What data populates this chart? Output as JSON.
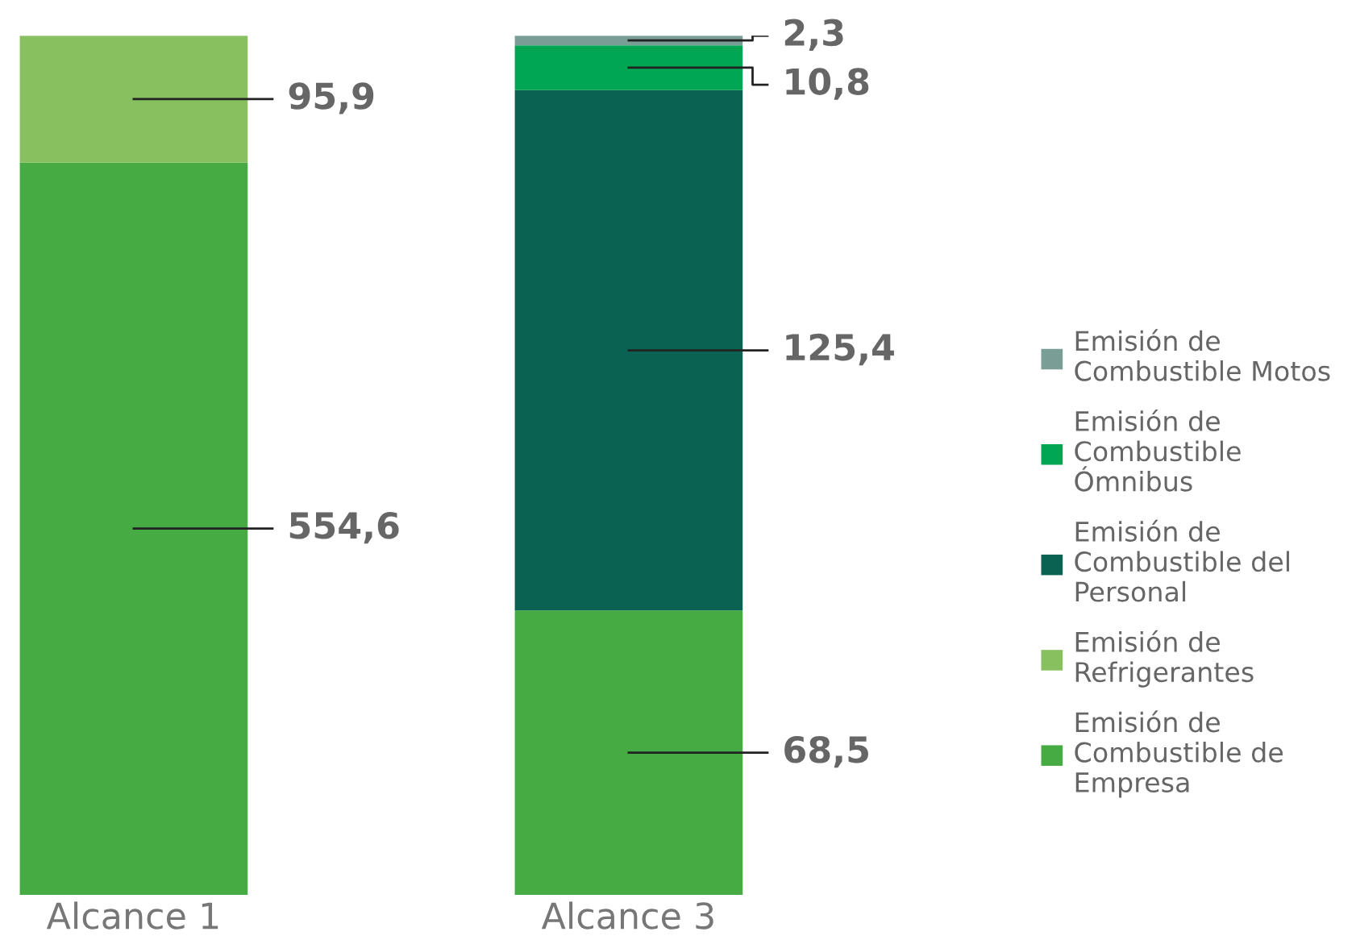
{
  "chart_data": [
    {
      "type": "bar",
      "stacked": true,
      "categories": [
        "Alcance 1"
      ],
      "ylim": [
        0,
        650.5
      ],
      "tick_labels": "x",
      "series": [
        {
          "name": "Emisión de\nCombustible de\nEmpresa",
          "color": "#46ab42",
          "values": [
            554.6
          ],
          "value_labels": [
            "554,6"
          ]
        },
        {
          "name": "Emisión de\nRefrigerantes",
          "color": "#88bf5f",
          "values": [
            95.9
          ],
          "value_labels": [
            "95,9"
          ]
        }
      ],
      "legend": "right",
      "grid": false
    },
    {
      "type": "bar",
      "stacked": true,
      "categories": [
        "Alcance 3"
      ],
      "ylim": [
        0,
        207
      ],
      "tick_labels": "x",
      "series": [
        {
          "color": "#46ab42",
          "values": [
            68.5
          ],
          "value_labels": [
            "68,5"
          ]
        },
        {
          "name": "Emisión de\nCombustible del\nPersonal",
          "color": "#0a6352",
          "values": [
            125.4
          ],
          "value_labels": [
            "125,4"
          ]
        },
        {
          "name": "Emisión de\nCombustible\nÓmnibus",
          "color": "#00a651",
          "values": [
            10.8
          ],
          "value_labels": [
            "10,8"
          ]
        },
        {
          "name": "Emisión de\nCombustible Motos",
          "color": "#7a9e95",
          "values": [
            2.3
          ],
          "value_labels": [
            "2,3"
          ]
        }
      ],
      "legend": "right",
      "grid": false
    }
  ]
}
